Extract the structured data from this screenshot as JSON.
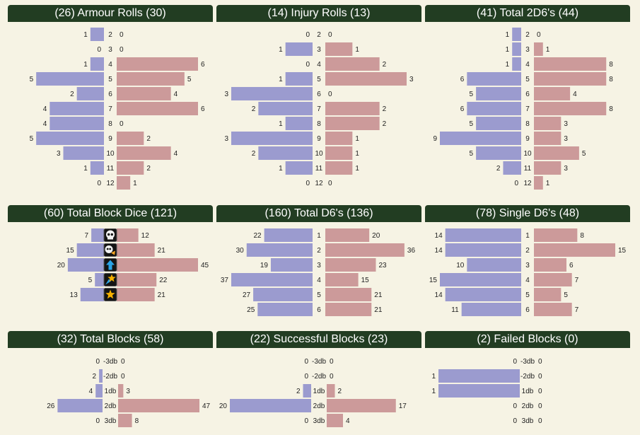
{
  "chart_data": [
    {
      "type": "bar",
      "title": "(26) Armour Rolls (30)",
      "categories": [
        "2",
        "3",
        "4",
        "5",
        "6",
        "7",
        "8",
        "9",
        "10",
        "11",
        "12"
      ],
      "series": [
        {
          "values": [
            1,
            0,
            1,
            5,
            2,
            4,
            4,
            5,
            3,
            1,
            0
          ]
        },
        {
          "values": [
            0,
            0,
            6,
            5,
            4,
            6,
            0,
            2,
            4,
            2,
            1
          ]
        }
      ],
      "xlim": [
        0,
        6
      ]
    },
    {
      "type": "bar",
      "title": "(14) Injury Rolls (13)",
      "categories": [
        "2",
        "3",
        "4",
        "5",
        "6",
        "7",
        "8",
        "9",
        "10",
        "11",
        "12"
      ],
      "series": [
        {
          "values": [
            0,
            1,
            0,
            1,
            3,
            2,
            1,
            3,
            2,
            1,
            0
          ]
        },
        {
          "values": [
            0,
            1,
            2,
            3,
            0,
            2,
            2,
            1,
            1,
            1,
            0
          ]
        }
      ],
      "xlim": [
        0,
        3
      ]
    },
    {
      "type": "bar",
      "title": "(41) Total 2D6's (44)",
      "categories": [
        "2",
        "3",
        "4",
        "5",
        "6",
        "7",
        "8",
        "9",
        "10",
        "11",
        "12"
      ],
      "series": [
        {
          "values": [
            1,
            1,
            1,
            6,
            5,
            6,
            5,
            9,
            5,
            2,
            0
          ]
        },
        {
          "values": [
            0,
            1,
            8,
            8,
            4,
            8,
            3,
            3,
            5,
            3,
            1
          ]
        }
      ],
      "xlim": [
        0,
        9
      ]
    },
    {
      "type": "bar",
      "title": "(60) Total Block Dice (121)",
      "categories": [
        "skull-icon",
        "both-down-icon",
        "push-icon",
        "defender-stumbles-icon",
        "pow-icon"
      ],
      "icon_categories": true,
      "series": [
        {
          "values": [
            7,
            15,
            20,
            5,
            13
          ]
        },
        {
          "values": [
            12,
            21,
            45,
            22,
            21
          ]
        }
      ],
      "xlim": [
        0,
        45
      ]
    },
    {
      "type": "bar",
      "title": "(160) Total D6's (136)",
      "categories": [
        "1",
        "2",
        "3",
        "4",
        "5",
        "6"
      ],
      "series": [
        {
          "values": [
            22,
            30,
            19,
            37,
            27,
            25
          ]
        },
        {
          "values": [
            20,
            36,
            23,
            15,
            21,
            21
          ]
        }
      ],
      "xlim": [
        0,
        37
      ]
    },
    {
      "type": "bar",
      "title": "(78) Single D6's (48)",
      "categories": [
        "1",
        "2",
        "3",
        "4",
        "5",
        "6"
      ],
      "series": [
        {
          "values": [
            14,
            14,
            10,
            15,
            14,
            11
          ]
        },
        {
          "values": [
            8,
            15,
            6,
            7,
            5,
            7
          ]
        }
      ],
      "xlim": [
        0,
        15
      ]
    },
    {
      "type": "bar",
      "title": "(32) Total Blocks (58)",
      "categories": [
        "-3db",
        "-2db",
        "1db",
        "2db",
        "3db"
      ],
      "series": [
        {
          "values": [
            0,
            2,
            4,
            26,
            0
          ]
        },
        {
          "values": [
            0,
            0,
            3,
            47,
            8
          ]
        }
      ],
      "xlim": [
        0,
        47
      ]
    },
    {
      "type": "bar",
      "title": "(22) Successful Blocks (23)",
      "categories": [
        "-3db",
        "-2db",
        "1db",
        "2db",
        "3db"
      ],
      "series": [
        {
          "values": [
            0,
            0,
            2,
            20,
            0
          ]
        },
        {
          "values": [
            0,
            0,
            2,
            17,
            4
          ]
        }
      ],
      "xlim": [
        0,
        20
      ]
    },
    {
      "type": "bar",
      "title": "(2) Failed Blocks (0)",
      "categories": [
        "-3db",
        "-2db",
        "1db",
        "2db",
        "3db"
      ],
      "series": [
        {
          "values": [
            0,
            1,
            1,
            0,
            0
          ]
        },
        {
          "values": [
            0,
            0,
            0,
            0,
            0
          ]
        }
      ],
      "xlim": [
        0,
        1
      ]
    }
  ],
  "colors": {
    "title_bg": "#223d22",
    "title_text": "#ffffff",
    "left_bar": "#9b9bcf",
    "right_bar": "#cc9a9a",
    "background": "#f6f3e4"
  }
}
